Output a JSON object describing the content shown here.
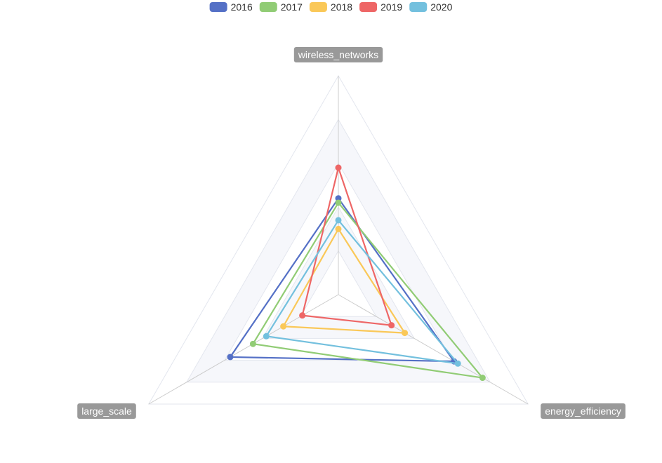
{
  "chart_data": {
    "type": "radar",
    "indicators": [
      "wireless_networks",
      "energy_efficiency",
      "large_scale"
    ],
    "max": 100,
    "split_number": 5,
    "legend_position": "top-center",
    "series": [
      {
        "name": "2016",
        "color": "#5470c6",
        "values": [
          44,
          61,
          57
        ]
      },
      {
        "name": "2017",
        "color": "#91cc75",
        "values": [
          42,
          76,
          45
        ]
      },
      {
        "name": "2018",
        "color": "#fac858",
        "values": [
          30,
          35,
          29
        ]
      },
      {
        "name": "2019",
        "color": "#ee6666",
        "values": [
          58,
          28,
          19
        ]
      },
      {
        "name": "2020",
        "color": "#73c0de",
        "values": [
          34,
          63,
          38
        ]
      }
    ]
  }
}
